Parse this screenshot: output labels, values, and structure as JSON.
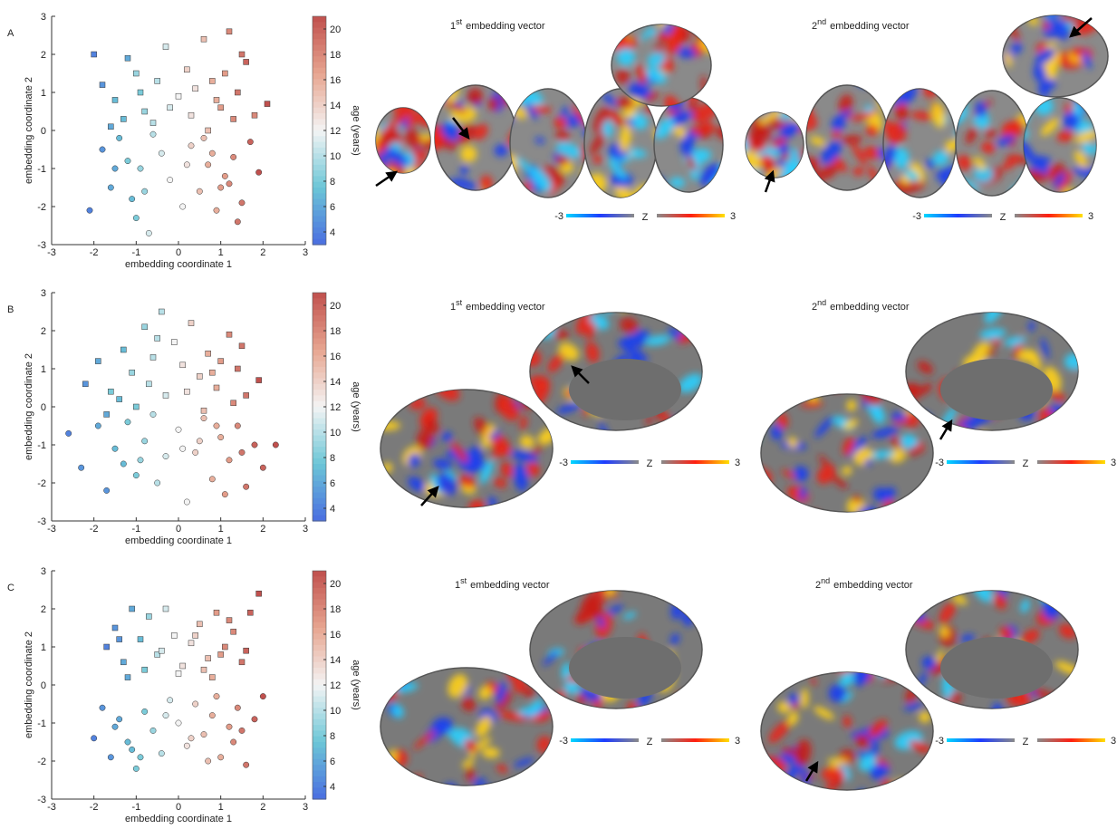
{
  "chart_data": [
    {
      "type": "scatter",
      "xlabel": "embedding coordinate 1",
      "ylabel": "embedding coordinate 2",
      "clabel": "age (years)",
      "xlim": [
        -3,
        3
      ],
      "ylim": [
        -3,
        3
      ],
      "xticks": [
        -3,
        -2,
        -1,
        0,
        1,
        2,
        3
      ],
      "yticks": [
        -3,
        -2,
        -1,
        0,
        1,
        2,
        3
      ],
      "clim": [
        3,
        21
      ],
      "cticks": [
        4,
        6,
        8,
        10,
        12,
        14,
        16,
        18,
        20
      ],
      "colormap": [
        "#4a6ee0",
        "#6cc6d6",
        "#f4f4f4",
        "#e7a590",
        "#c0504d"
      ],
      "series": [
        {
          "marker": "square",
          "x": [
            -2.0,
            -1.8,
            -1.5,
            -1.2,
            -1.0,
            -0.8,
            -0.5,
            -0.3,
            0.0,
            0.2,
            0.4,
            0.6,
            0.8,
            1.0,
            1.2,
            1.4,
            1.6,
            1.8,
            2.1,
            -1.6,
            -1.3,
            -0.9,
            -0.6,
            0.3,
            0.7,
            1.1,
            1.3,
            1.5,
            0.9,
            -0.2
          ],
          "y": [
            2.0,
            1.2,
            0.8,
            1.9,
            1.5,
            0.5,
            1.3,
            2.2,
            0.9,
            1.6,
            1.1,
            2.4,
            1.3,
            0.6,
            2.6,
            1.0,
            1.8,
            0.4,
            0.7,
            0.1,
            0.3,
            1.0,
            0.2,
            0.4,
            0.0,
            1.5,
            0.3,
            2.0,
            0.8,
            0.6
          ],
          "c": [
            4,
            5,
            7,
            6,
            9,
            9,
            10,
            11,
            12,
            14,
            13,
            15,
            16,
            17,
            18,
            19,
            20,
            18,
            21,
            6,
            7,
            8,
            10,
            13,
            15,
            17,
            18,
            19,
            16,
            11
          ]
        },
        {
          "marker": "circle",
          "x": [
            -2.1,
            -1.8,
            -1.6,
            -1.4,
            -1.1,
            -0.9,
            -0.7,
            -0.4,
            -0.2,
            0.1,
            0.3,
            0.5,
            0.7,
            0.9,
            1.1,
            1.3,
            1.5,
            1.7,
            1.9,
            -1.2,
            -0.6,
            -1.0,
            0.2,
            0.6,
            1.0,
            1.4,
            -1.5,
            -0.8,
            0.8,
            1.2
          ],
          "y": [
            -2.1,
            -0.5,
            -1.5,
            -0.2,
            -1.8,
            -1.0,
            -2.7,
            -0.6,
            -1.3,
            -2.0,
            -0.4,
            -1.6,
            -0.9,
            -2.1,
            -1.2,
            -0.7,
            -1.9,
            -0.3,
            -1.1,
            -0.8,
            -0.1,
            -2.3,
            -0.9,
            -0.2,
            -1.5,
            -2.4,
            -1.0,
            -1.6,
            -0.6,
            -1.4
          ],
          "c": [
            4,
            5,
            6,
            7,
            7,
            9,
            11,
            11,
            12,
            12,
            14,
            15,
            16,
            16,
            17,
            18,
            19,
            20,
            21,
            8,
            10,
            8,
            13,
            15,
            17,
            19,
            6,
            9,
            16,
            18
          ]
        }
      ]
    },
    {
      "type": "scatter",
      "xlabel": "embedding coordinate 1",
      "ylabel": "embedding coordinate 2",
      "clabel": "age (years)",
      "xlim": [
        -3,
        3
      ],
      "ylim": [
        -3,
        3
      ],
      "xticks": [
        -3,
        -2,
        -1,
        0,
        1,
        2,
        3
      ],
      "yticks": [
        -3,
        -2,
        -1,
        0,
        1,
        2,
        3
      ],
      "clim": [
        3,
        21
      ],
      "cticks": [
        4,
        6,
        8,
        10,
        12,
        14,
        16,
        18,
        20
      ],
      "colormap": [
        "#4a6ee0",
        "#6cc6d6",
        "#f4f4f4",
        "#e7a590",
        "#c0504d"
      ],
      "series": [
        {
          "marker": "square",
          "x": [
            -2.2,
            -1.9,
            -1.6,
            -1.3,
            -1.1,
            -0.8,
            -0.6,
            -0.4,
            -0.1,
            0.1,
            0.3,
            0.5,
            0.7,
            0.9,
            1.2,
            1.4,
            1.6,
            1.9,
            -1.7,
            -1.4,
            -1.0,
            -0.7,
            -0.3,
            0.2,
            0.6,
            1.0,
            1.3,
            1.5,
            0.8,
            -0.5
          ],
          "y": [
            0.6,
            1.2,
            0.4,
            1.5,
            0.9,
            2.1,
            1.3,
            2.5,
            1.7,
            1.1,
            2.2,
            0.8,
            1.4,
            0.5,
            1.9,
            1.0,
            0.3,
            0.7,
            -0.2,
            0.2,
            0.0,
            0.6,
            0.3,
            0.4,
            -0.1,
            1.2,
            0.1,
            1.6,
            0.9,
            1.8
          ],
          "c": [
            5,
            6,
            8,
            7,
            9,
            9,
            10,
            10,
            12,
            13,
            14,
            14,
            16,
            16,
            18,
            19,
            19,
            21,
            6,
            7,
            8,
            10,
            11,
            13,
            15,
            17,
            18,
            19,
            16,
            10
          ]
        },
        {
          "marker": "circle",
          "x": [
            -2.6,
            -2.3,
            -1.9,
            -1.7,
            -1.5,
            -1.2,
            -1.0,
            -0.8,
            -0.5,
            -0.3,
            0.0,
            0.2,
            0.4,
            0.6,
            0.8,
            1.0,
            1.2,
            1.4,
            1.6,
            1.8,
            2.0,
            2.3,
            -1.3,
            -0.6,
            0.1,
            0.9,
            1.5,
            -0.9,
            0.5,
            1.1
          ],
          "y": [
            -0.7,
            -1.6,
            -0.5,
            -2.2,
            -1.1,
            -0.4,
            -1.8,
            -0.9,
            -2.0,
            -1.3,
            -0.6,
            -2.5,
            -1.2,
            -0.3,
            -1.9,
            -0.8,
            -1.4,
            -0.5,
            -2.1,
            -1.0,
            -1.6,
            -1.0,
            -1.5,
            -0.2,
            -1.1,
            -0.5,
            -1.2,
            -1.4,
            -0.9,
            -2.3
          ],
          "c": [
            4,
            5,
            6,
            5,
            7,
            8,
            8,
            9,
            10,
            11,
            12,
            12,
            14,
            15,
            16,
            16,
            17,
            18,
            19,
            20,
            20,
            21,
            7,
            10,
            12,
            16,
            19,
            9,
            14,
            17
          ]
        }
      ]
    },
    {
      "type": "scatter",
      "xlabel": "embedding coordinate 1",
      "ylabel": "embedding coordinate 2",
      "clabel": "age (years)",
      "xlim": [
        -3,
        3
      ],
      "ylim": [
        -3,
        3
      ],
      "xticks": [
        -3,
        -2,
        -1,
        0,
        1,
        2,
        3
      ],
      "yticks": [
        -3,
        -2,
        -1,
        0,
        1,
        2,
        3
      ],
      "clim": [
        3,
        21
      ],
      "cticks": [
        4,
        6,
        8,
        10,
        12,
        14,
        16,
        18,
        20
      ],
      "colormap": [
        "#4a6ee0",
        "#6cc6d6",
        "#f4f4f4",
        "#e7a590",
        "#c0504d"
      ],
      "series": [
        {
          "marker": "square",
          "x": [
            -1.7,
            -1.5,
            -1.3,
            -1.1,
            -0.9,
            -0.7,
            -0.5,
            -0.3,
            -0.1,
            0.1,
            0.3,
            0.5,
            0.7,
            0.9,
            1.1,
            1.3,
            1.5,
            1.7,
            1.9,
            -1.2,
            -0.8,
            -0.4,
            0.0,
            0.4,
            0.8,
            1.2,
            1.6,
            -1.4,
            0.6,
            1.0
          ],
          "y": [
            1.0,
            1.5,
            0.6,
            2.0,
            1.2,
            1.8,
            0.8,
            2.0,
            1.3,
            0.5,
            1.1,
            1.6,
            0.7,
            1.9,
            1.0,
            1.4,
            0.6,
            1.9,
            2.4,
            0.2,
            0.4,
            0.9,
            0.3,
            1.3,
            0.2,
            1.7,
            0.9,
            1.2,
            0.4,
            0.8
          ],
          "c": [
            4,
            5,
            6,
            6,
            7,
            9,
            10,
            11,
            12,
            13,
            13,
            15,
            15,
            17,
            18,
            18,
            19,
            20,
            21,
            6,
            8,
            11,
            12,
            14,
            16,
            18,
            20,
            5,
            15,
            17
          ]
        },
        {
          "marker": "circle",
          "x": [
            -2.0,
            -1.8,
            -1.6,
            -1.4,
            -1.2,
            -1.0,
            -0.8,
            -0.6,
            -0.4,
            -0.2,
            0.0,
            0.2,
            0.4,
            0.6,
            0.8,
            1.0,
            1.2,
            1.4,
            1.6,
            1.8,
            2.0,
            -1.5,
            -0.9,
            -0.3,
            0.3,
            0.9,
            1.5,
            -1.1,
            0.7,
            1.3
          ],
          "y": [
            -1.4,
            -0.6,
            -1.9,
            -0.9,
            -1.5,
            -2.2,
            -0.7,
            -1.2,
            -1.8,
            -0.4,
            -1.0,
            -1.6,
            -0.5,
            -1.3,
            -0.8,
            -1.9,
            -1.1,
            -0.6,
            -2.1,
            -0.9,
            -0.3,
            -1.1,
            -1.9,
            -0.8,
            -1.4,
            -0.3,
            -1.2,
            -1.7,
            -2.0,
            -1.5
          ],
          "c": [
            4,
            5,
            5,
            6,
            7,
            8,
            8,
            9,
            10,
            11,
            12,
            13,
            14,
            15,
            16,
            16,
            17,
            18,
            19,
            20,
            21,
            6,
            8,
            11,
            14,
            16,
            19,
            7,
            15,
            18
          ]
        }
      ]
    }
  ],
  "panels": [
    {
      "label": "A",
      "maps": [
        {
          "title": {
            "number": "1",
            "suffix": "st",
            "text": "embedding vector"
          },
          "scale": {
            "min": "-3",
            "name": "Z",
            "max": "3"
          }
        },
        {
          "title": {
            "number": "2",
            "suffix": "nd",
            "text": "embedding vector"
          },
          "scale": {
            "min": "-3",
            "name": "Z",
            "max": "3"
          }
        }
      ]
    },
    {
      "label": "B",
      "maps": [
        {
          "title": {
            "number": "1",
            "suffix": "st",
            "text": "embedding vector"
          },
          "scale": {
            "min": "-3",
            "name": "Z",
            "max": "3"
          }
        },
        {
          "title": {
            "number": "2",
            "suffix": "nd",
            "text": "embedding vector"
          },
          "scale": {
            "min": "-3",
            "name": "Z",
            "max": "3"
          }
        }
      ]
    },
    {
      "label": "C",
      "maps": [
        {
          "title": {
            "number": "1",
            "suffix": "st",
            "text": "embedding vector"
          },
          "scale": {
            "min": "-3",
            "name": "Z",
            "max": "3"
          }
        },
        {
          "title": {
            "number": "2",
            "suffix": "nd",
            "text": "embedding vector"
          },
          "scale": {
            "min": "-3",
            "name": "Z",
            "max": "3"
          }
        }
      ]
    }
  ]
}
